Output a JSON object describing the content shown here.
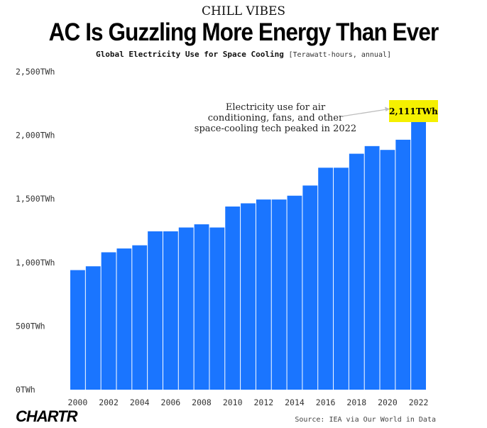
{
  "header": {
    "kicker": "CHILL VIBES",
    "title": "AC Is Guzzling More Energy Than Ever",
    "subtitle": "Global Electricity Use for Space Cooling",
    "subtitle_unit": "[Terawatt-hours, annual]"
  },
  "footer": {
    "logo": "CHARTR",
    "source": "Source: IEA via Our World in Data"
  },
  "colors": {
    "bar": "#1a75ff",
    "callout_bg": "#f5f000"
  },
  "chart_data": {
    "type": "bar",
    "title": "AC Is Guzzling More Energy Than Ever",
    "subtitle": "Global Electricity Use for Space Cooling [Terawatt-hours, annual]",
    "xlabel": "",
    "ylabel": "",
    "categories": [
      "2000",
      "2001",
      "2002",
      "2003",
      "2004",
      "2005",
      "2006",
      "2007",
      "2008",
      "2009",
      "2010",
      "2011",
      "2012",
      "2013",
      "2014",
      "2015",
      "2016",
      "2017",
      "2018",
      "2019",
      "2020",
      "2021",
      "2022"
    ],
    "values": [
      940,
      970,
      1080,
      1110,
      1135,
      1245,
      1245,
      1275,
      1300,
      1275,
      1440,
      1465,
      1495,
      1495,
      1525,
      1605,
      1745,
      1745,
      1855,
      1915,
      1885,
      1965,
      2111
    ],
    "x_tick_labels": [
      "2000",
      "2002",
      "2004",
      "2006",
      "2008",
      "2010",
      "2012",
      "2014",
      "2016",
      "2018",
      "2020",
      "2022"
    ],
    "y_ticks": [
      0,
      500,
      1000,
      1500,
      2000,
      2500
    ],
    "y_tick_labels": [
      "0TWh",
      "500TWh",
      "1,000TWh",
      "1,500TWh",
      "2,000TWh",
      "2,500TWh"
    ],
    "ylim": [
      0,
      2500
    ],
    "grid": false,
    "legend": "none",
    "annotation": {
      "lines": [
        "Electricity use for air",
        "conditioning, fans, and other",
        "space-cooling tech peaked in 2022"
      ],
      "callout": "2,111TWh",
      "target": "2022"
    }
  }
}
